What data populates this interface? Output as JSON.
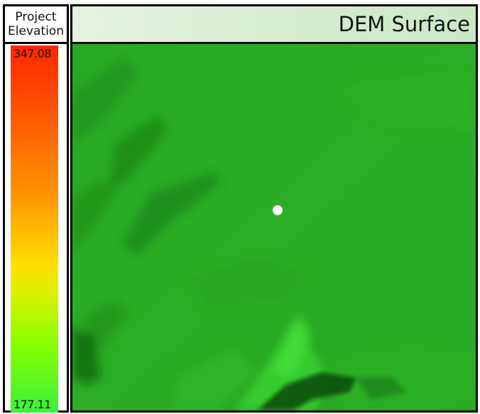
{
  "legend": {
    "title_line1": "Project",
    "title_line2": "Elevation",
    "max_value": "347.08",
    "min_value": "177.11",
    "ramp_colors": [
      "#ff2600",
      "#ff9900",
      "#ffdf00",
      "#84ff00",
      "#3cf03c"
    ]
  },
  "map": {
    "title": "DEM Surface",
    "surface_color": "#2aab24",
    "marker_color": "#ffffff",
    "marker_icon": "location-dot-icon"
  }
}
